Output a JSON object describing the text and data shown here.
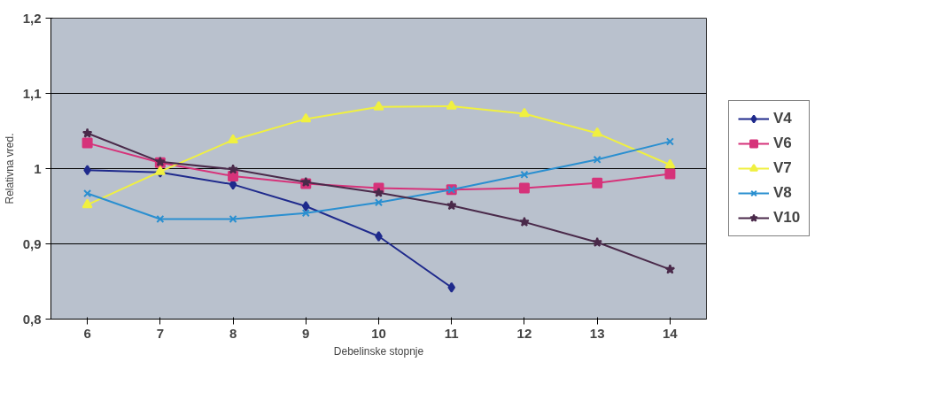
{
  "chart_data": {
    "type": "line",
    "xlabel": "Debelinske stopnje",
    "ylabel": "Relativna vred.",
    "categories": [
      "6",
      "7",
      "8",
      "9",
      "10",
      "11",
      "12",
      "13",
      "14"
    ],
    "ylim": [
      0.8,
      1.2
    ],
    "yticks": [
      {
        "value": 0.8,
        "label": "0,8"
      },
      {
        "value": 0.9,
        "label": "0,9"
      },
      1,
      {
        "value": 1.1,
        "label": "1,1"
      },
      {
        "value": 1.2,
        "label": "1,2"
      }
    ],
    "grid": "y",
    "legend": "right",
    "series": [
      {
        "name": "V4",
        "color": "#1f2a8c",
        "marker": "diamond",
        "values": [
          0.998,
          0.995,
          0.979,
          0.95,
          0.91,
          0.842,
          null,
          null,
          null
        ]
      },
      {
        "name": "V6",
        "color": "#d6337a",
        "marker": "square",
        "values": [
          1.034,
          1.008,
          0.99,
          0.98,
          0.974,
          0.972,
          0.974,
          0.981,
          0.993
        ]
      },
      {
        "name": "V7",
        "color": "#f0f040",
        "marker": "triangle",
        "values": [
          0.952,
          0.996,
          1.038,
          1.066,
          1.082,
          1.083,
          1.073,
          1.047,
          1.005
        ]
      },
      {
        "name": "V8",
        "color": "#2a8fd0",
        "marker": "cross",
        "values": [
          0.967,
          0.933,
          0.933,
          0.941,
          0.955,
          0.972,
          0.992,
          1.012,
          1.036
        ]
      },
      {
        "name": "V10",
        "color": "#4a2a4a",
        "marker": "star",
        "values": [
          1.047,
          1.009,
          0.999,
          0.982,
          0.968,
          0.951,
          0.929,
          0.902,
          0.866
        ]
      }
    ]
  }
}
